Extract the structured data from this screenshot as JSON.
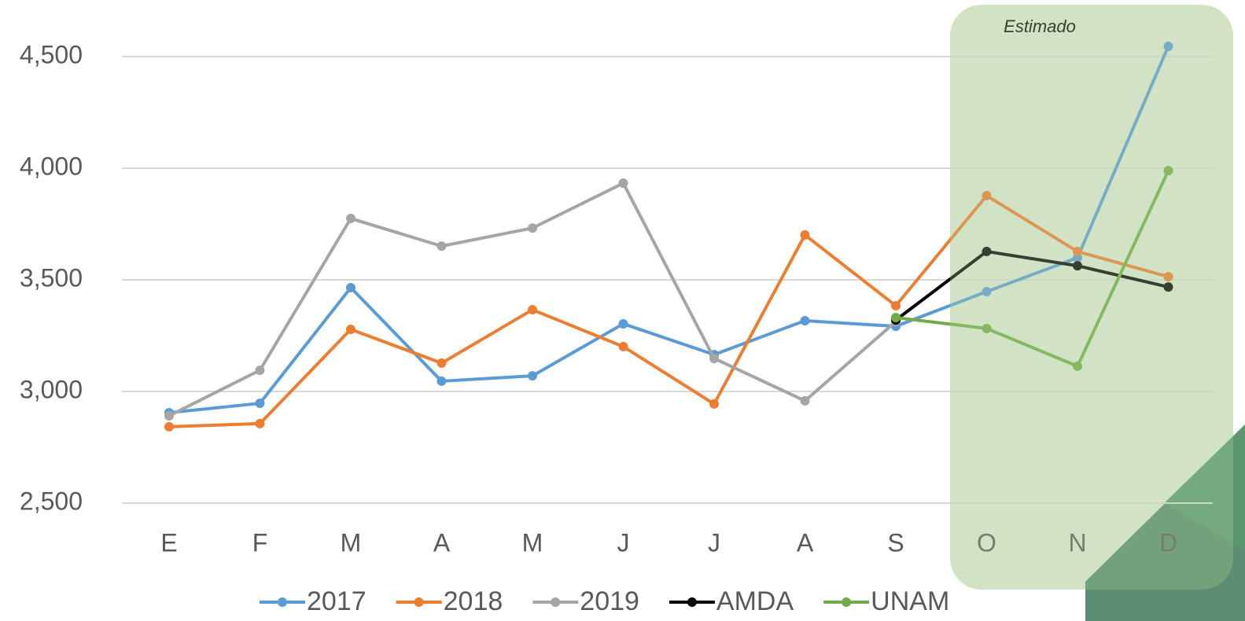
{
  "chart_data": {
    "type": "line",
    "annotation": "Estimado",
    "categories": [
      "E",
      "F",
      "M",
      "A",
      "M",
      "J",
      "J",
      "A",
      "S",
      "O",
      "N",
      "D"
    ],
    "series": [
      {
        "name": "2017",
        "color": "#5b9bd5",
        "values": [
          2905,
          2947,
          3465,
          3046,
          3070,
          3303,
          3165,
          3317,
          3292,
          3447,
          3599,
          4546
        ]
      },
      {
        "name": "2018",
        "color": "#ed7d31",
        "values": [
          2842,
          2856,
          3278,
          3127,
          3366,
          3201,
          2944,
          3701,
          3384,
          3877,
          3627,
          3514
        ]
      },
      {
        "name": "2019",
        "color": "#a5a5a5",
        "values": [
          2891,
          3095,
          3775,
          3651,
          3732,
          3933,
          3148,
          2958,
          3313,
          null,
          null,
          null
        ]
      },
      {
        "name": "AMDA",
        "color": "#000000",
        "values": [
          null,
          null,
          null,
          null,
          null,
          null,
          null,
          null,
          3320,
          3627,
          3563,
          3468
        ]
      },
      {
        "name": "UNAM",
        "color": "#70ad47",
        "values": [
          null,
          null,
          null,
          null,
          null,
          null,
          null,
          null,
          3331,
          3282,
          3113,
          3989
        ]
      }
    ],
    "ylim": [
      2500,
      4500
    ],
    "yticks": [
      {
        "value": 2500,
        "label": "2,500"
      },
      {
        "value": 3000,
        "label": "3,000"
      },
      {
        "value": 3500,
        "label": "3,500"
      },
      {
        "value": 4000,
        "label": "4,000"
      },
      {
        "value": 4500,
        "label": "4,500"
      }
    ],
    "grid": true
  }
}
